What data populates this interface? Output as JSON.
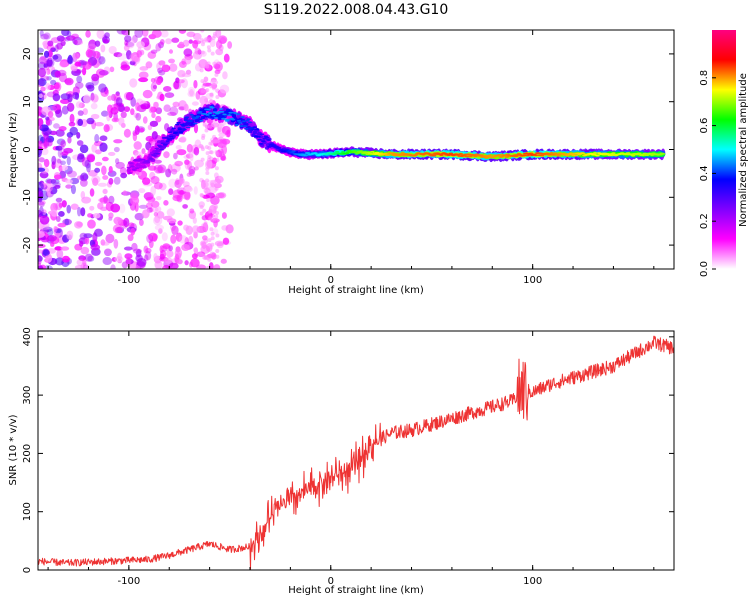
{
  "title": "S119.2022.008.04.43.G10",
  "chart_data": [
    {
      "type": "heatmap",
      "xlabel": "Height of straight line (km)",
      "ylabel": "Frequency (Hz)",
      "xlim": [
        -145,
        170
      ],
      "ylim": [
        -25,
        25
      ],
      "xticks": [
        -100,
        0,
        100
      ],
      "yticks": [
        -20,
        -10,
        0,
        10,
        20
      ],
      "colorbar": {
        "label": "Normalized spectral amplitude",
        "range": [
          0,
          1
        ],
        "ticks": [
          0.0,
          0.2,
          0.4,
          0.6,
          0.8
        ],
        "colormap": [
          "#ffffff",
          "#ff00ff",
          "#8000ff",
          "#0000ff",
          "#00ffff",
          "#00ff00",
          "#ffff00",
          "#ff0000",
          "#ff0080"
        ]
      },
      "signal_track": [
        {
          "x": -100,
          "y": -4,
          "amp": 0.22
        },
        {
          "x": -90,
          "y": -2,
          "amp": 0.25
        },
        {
          "x": -80,
          "y": 3,
          "amp": 0.35
        },
        {
          "x": -70,
          "y": 6,
          "amp": 0.4
        },
        {
          "x": -60,
          "y": 8,
          "amp": 0.45
        },
        {
          "x": -50,
          "y": 7,
          "amp": 0.45
        },
        {
          "x": -40,
          "y": 5,
          "amp": 0.4
        },
        {
          "x": -34,
          "y": 2,
          "amp": 0.35
        },
        {
          "x": -25,
          "y": 0,
          "amp": 0.35
        },
        {
          "x": -15,
          "y": -1,
          "amp": 0.45
        },
        {
          "x": -5,
          "y": -1,
          "amp": 0.5
        },
        {
          "x": 10,
          "y": -0.5,
          "amp": 0.65
        },
        {
          "x": 30,
          "y": -1,
          "amp": 0.8
        },
        {
          "x": 60,
          "y": -1,
          "amp": 0.85
        },
        {
          "x": 80,
          "y": -1.5,
          "amp": 0.8
        },
        {
          "x": 100,
          "y": -1,
          "amp": 0.85
        },
        {
          "x": 130,
          "y": -1,
          "amp": 0.75
        },
        {
          "x": 165,
          "y": -1,
          "amp": 0.7
        }
      ],
      "noise_region_x": [
        -145,
        -95
      ]
    },
    {
      "type": "line",
      "xlabel": "Height of straight line (km)",
      "ylabel": "SNR (10 * v/v)",
      "xlim": [
        -145,
        170
      ],
      "ylim": [
        0,
        410
      ],
      "xticks": [
        -100,
        0,
        100
      ],
      "yticks": [
        0,
        100,
        200,
        300,
        400
      ],
      "color": "#ee3333",
      "series": [
        {
          "x": [
            -145,
            -130,
            -110,
            -90,
            -80,
            -70,
            -60,
            -50,
            -40,
            -35,
            -30,
            -25,
            -20,
            -10,
            0,
            10,
            20,
            30,
            40,
            50,
            60,
            70,
            80,
            90,
            95,
            100,
            110,
            120,
            130,
            140,
            150,
            160,
            170
          ],
          "values": [
            15,
            12,
            15,
            18,
            25,
            35,
            45,
            35,
            40,
            60,
            90,
            110,
            120,
            140,
            160,
            170,
            215,
            235,
            240,
            250,
            260,
            270,
            280,
            290,
            310,
            305,
            320,
            330,
            340,
            350,
            370,
            390,
            380
          ]
        }
      ]
    }
  ]
}
